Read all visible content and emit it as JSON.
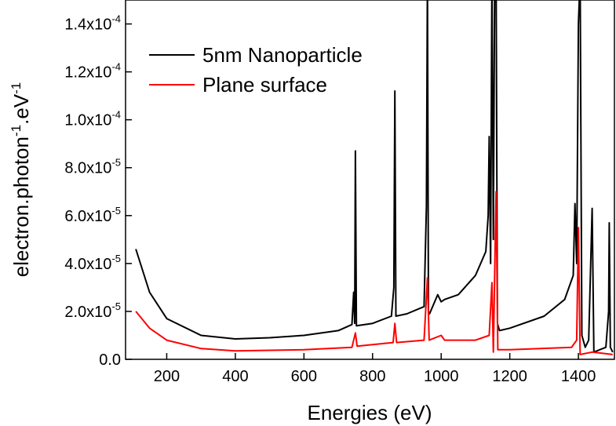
{
  "chart_data": {
    "type": "line",
    "xlabel": "Energies (eV)",
    "ylabel": [
      "electron.photon",
      "-1",
      ".eV",
      "-1"
    ],
    "xlim": [
      80,
      1505
    ],
    "ylim": [
      0,
      0.00015
    ],
    "xticks": [
      200,
      400,
      600,
      800,
      1000,
      1200,
      1400
    ],
    "yticks": [
      {
        "value": 0,
        "label": "0.0"
      },
      {
        "value": 2e-05,
        "label": "2.0x10",
        "exp": "-5"
      },
      {
        "value": 4e-05,
        "label": "4.0x10",
        "exp": "-5"
      },
      {
        "value": 6e-05,
        "label": "6.0x10",
        "exp": "-5"
      },
      {
        "value": 8e-05,
        "label": "8.0x10",
        "exp": "-5"
      },
      {
        "value": 0.0001,
        "label": "1.0x10",
        "exp": "-4"
      },
      {
        "value": 0.00012,
        "label": "1.2x10",
        "exp": "-4"
      },
      {
        "value": 0.00014,
        "label": "1.4x10",
        "exp": "-4"
      }
    ],
    "legend": "upper left",
    "series": [
      {
        "name": "5nm Nanoparticle",
        "color": "#000000",
        "x": [
          110,
          150,
          200,
          300,
          400,
          500,
          600,
          700,
          740,
          745,
          748,
          750,
          753,
          800,
          855,
          862,
          865,
          868,
          900,
          950,
          957,
          960,
          963,
          966,
          990,
          1000,
          1010,
          1050,
          1100,
          1130,
          1137,
          1140,
          1144,
          1148,
          1152,
          1156,
          1160,
          1164,
          1170,
          1200,
          1300,
          1360,
          1385,
          1390,
          1395,
          1400,
          1405,
          1410,
          1420,
          1430,
          1440,
          1445,
          1480,
          1488,
          1490,
          1493,
          1500
        ],
        "values": [
          4.6e-05,
          2.8e-05,
          1.7e-05,
          1e-05,
          8.5e-06,
          9e-06,
          1e-05,
          1.2e-05,
          1.45e-05,
          2.8e-05,
          1.5e-05,
          8.7e-05,
          1.4e-05,
          1.5e-05,
          1.8e-05,
          3e-05,
          0.000112,
          1.8e-05,
          1.9e-05,
          2.2e-05,
          6.4e-05,
          0.00016,
          2e-05,
          1.9e-05,
          2.7e-05,
          2.4e-05,
          2.5e-05,
          2.7e-05,
          3.5e-05,
          4.5e-05,
          6e-05,
          9.3e-05,
          4e-05,
          0.00016,
          5e-05,
          0.00016,
          0.00016,
          1.5e-05,
          1.2e-05,
          1.3e-05,
          1.8e-05,
          2.5e-05,
          3.5e-05,
          6.5e-05,
          4e-05,
          0.00014,
          0.00016,
          1e-05,
          5e-06,
          8e-06,
          6.3e-05,
          3e-06,
          5e-06,
          2e-05,
          5.7e-05,
          5e-06,
          3e-06
        ]
      },
      {
        "name": "Plane surface",
        "color": "#ff0000",
        "x": [
          110,
          150,
          200,
          300,
          400,
          600,
          740,
          750,
          755,
          860,
          865,
          870,
          950,
          960,
          965,
          1000,
          1010,
          1100,
          1140,
          1148,
          1152,
          1160,
          1165,
          1200,
          1380,
          1395,
          1400,
          1405,
          1440,
          1500
        ],
        "values": [
          2e-05,
          1.3e-05,
          8e-06,
          4.5e-06,
          3.5e-06,
          4e-06,
          5e-06,
          1.1e-05,
          5.5e-06,
          7e-06,
          1.5e-05,
          7e-06,
          8e-06,
          3.4e-05,
          8e-06,
          1e-05,
          8e-06,
          8e-06,
          1e-05,
          3.2e-05,
          3e-06,
          7e-05,
          4e-06,
          4e-06,
          5e-06,
          8e-06,
          5.5e-05,
          2e-06,
          3e-06,
          2e-06
        ]
      }
    ]
  }
}
